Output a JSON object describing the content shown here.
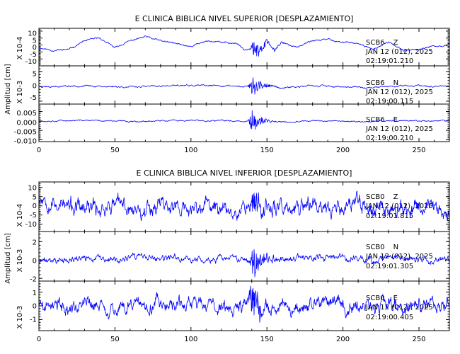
{
  "colors": {
    "trace": "#0000ff",
    "axes": "#000000",
    "background": "#ffffff"
  },
  "chart_data": [
    {
      "type": "line",
      "title": "E CLINICA BIBLICA NIVEL SUPERIOR [DESPLAZAMIENTO]",
      "ylabel": "Amplitud [cm]",
      "xlim": [
        0,
        270
      ],
      "xticks": [
        "0",
        "50",
        "100",
        "150",
        "200",
        "250"
      ],
      "grid": false,
      "panels": [
        {
          "station": "SCB6",
          "component": "Z",
          "date": "JAN 12 (012), 2025",
          "time": "02:19:01.210",
          "scale_label": "X 10-4",
          "ylim": [
            -15,
            12
          ],
          "yticks": [
            "10",
            "5",
            "0",
            "-5",
            "-10"
          ],
          "yticks_v": [
            10,
            5,
            0,
            -5,
            -10
          ],
          "x": [
            0,
            10,
            20,
            30,
            40,
            50,
            60,
            70,
            80,
            90,
            100,
            110,
            120,
            130,
            135,
            140,
            145,
            150,
            155,
            160,
            170,
            180,
            190,
            200,
            210,
            220,
            230,
            240,
            250,
            260,
            270
          ],
          "y": [
            -2,
            -4,
            -3,
            3,
            5,
            -2,
            3,
            6,
            3,
            1,
            -1,
            3,
            2,
            1,
            -3,
            -2,
            -5,
            3,
            -4,
            2,
            -2,
            3,
            4,
            2,
            1,
            -3,
            2,
            -4,
            -3,
            -1,
            0
          ],
          "noise": 0.35,
          "burst_amp": 5.6,
          "burst_peak": 141,
          "burst_decay": 7,
          "seed": 11
        },
        {
          "station": "SCB6",
          "component": "N",
          "date": "JAN 12 (012), 2025",
          "time": "02:19:00.115",
          "scale_label": "X 10-3",
          "ylim": [
            -6,
            7
          ],
          "yticks": [
            "5",
            "0",
            "-5"
          ],
          "yticks_v": [
            5,
            0,
            -5
          ],
          "x": [
            0,
            30,
            60,
            90,
            120,
            135,
            140,
            150,
            160,
            180,
            210,
            240,
            270
          ],
          "y": [
            0,
            0.2,
            -0.2,
            0.3,
            0.2,
            0,
            0,
            0.3,
            -0.4,
            0.2,
            -0.3,
            0.2,
            0
          ],
          "noise": 0.16,
          "burst_amp": 3.6,
          "burst_peak": 140,
          "burst_decay": 5,
          "seed": 23
        },
        {
          "station": "SCB6",
          "component": "E",
          "date": "JAN 12 (012), 2025",
          "time": "02:19:00.210",
          "scale_label": "",
          "ylim": [
            -0.011,
            0.009
          ],
          "yticks": [
            "0.005",
            "0.000",
            "-0.005",
            "-0.010"
          ],
          "yticks_v": [
            0.005,
            0.0,
            -0.005,
            -0.01
          ],
          "x": [
            0,
            30,
            60,
            90,
            120,
            135,
            140,
            150,
            160,
            180,
            210,
            240,
            270
          ],
          "y": [
            0,
            0.0003,
            -0.0002,
            0.0002,
            0.0001,
            0,
            0,
            0.0003,
            -0.0004,
            0.0002,
            -0.0002,
            0.0002,
            0
          ],
          "noise": 0.00022,
          "burst_amp": 0.0062,
          "burst_peak": 140,
          "burst_decay": 5,
          "seed": 37
        }
      ]
    },
    {
      "type": "line",
      "title": "E CLINICA BIBLICA NIVEL INFERIOR [DESPLAZAMIENTO]",
      "ylabel": "Amplitud [cm]",
      "xlim": [
        0,
        270
      ],
      "xticks": [
        "0",
        "50",
        "100",
        "150",
        "200",
        "250"
      ],
      "grid": false,
      "panels": [
        {
          "station": "SCB0",
          "component": "Z",
          "date": "JAN 12 (012), 2025",
          "time": "02:19:01.815",
          "scale_label": "X 10-4",
          "ylim": [
            -14,
            13
          ],
          "yticks": [
            "10",
            "5",
            "0",
            "-5",
            "-10"
          ],
          "yticks_v": [
            10,
            5,
            0,
            -5,
            -10
          ],
          "x": [
            0,
            5,
            10,
            20,
            30,
            40,
            50,
            60,
            70,
            80,
            90,
            100,
            110,
            120,
            130,
            140,
            150,
            160,
            170,
            180,
            190,
            200,
            210,
            220,
            230,
            240,
            250,
            260,
            270
          ],
          "y": [
            5,
            5,
            2,
            -1,
            -3,
            -1,
            1,
            -2,
            -1,
            2,
            -1,
            -3,
            0,
            -1,
            -1,
            1,
            -2,
            0,
            -1,
            1,
            -2,
            0,
            1,
            -2,
            -1,
            0,
            1,
            -2,
            -4
          ],
          "noise": 2.8,
          "burst_amp": 7.5,
          "burst_peak": 141,
          "burst_decay": 6,
          "seed": 53
        },
        {
          "station": "SCB0",
          "component": "N",
          "date": "JAN 12 (012), 2025",
          "time": "02:19:01.305",
          "scale_label": "X 10-3",
          "ylim": [
            -2.3,
            3.1
          ],
          "yticks": [
            "2",
            "0",
            "-2"
          ],
          "yticks_v": [
            2,
            0,
            -2
          ],
          "x": [
            0,
            10,
            20,
            30,
            40,
            50,
            60,
            70,
            80,
            90,
            100,
            110,
            120,
            130,
            140,
            150,
            160,
            170,
            180,
            190,
            200,
            210,
            220,
            230,
            240,
            250,
            260,
            270
          ],
          "y": [
            -0.2,
            0,
            -0.1,
            0.2,
            0.1,
            -0.1,
            0.2,
            0.3,
            0,
            0.2,
            0.1,
            -0.1,
            0.1,
            0,
            -0.2,
            0.3,
            0.2,
            0.4,
            0,
            0.3,
            0.2,
            0.1,
            -0.1,
            0.2,
            0.3,
            0.1,
            -0.2,
            0.2
          ],
          "noise": 0.22,
          "burst_amp": 1.5,
          "burst_peak": 141,
          "burst_decay": 6,
          "seed": 71
        },
        {
          "station": "SCB0",
          "component": "E",
          "date": "JAN 12 (012), 2025",
          "time": "02:19:00.405",
          "scale_label": "X 10-3",
          "ylim": [
            -1.8,
            1.8
          ],
          "yticks": [
            "1",
            "0",
            "-1"
          ],
          "yticks_v": [
            1,
            0,
            -1
          ],
          "x": [
            0,
            10,
            20,
            30,
            40,
            50,
            60,
            70,
            80,
            90,
            100,
            110,
            120,
            130,
            140,
            150,
            160,
            170,
            180,
            190,
            200,
            210,
            220,
            230,
            240,
            250,
            260,
            270
          ],
          "y": [
            0,
            0.1,
            -0.1,
            0.2,
            0,
            -0.4,
            0.1,
            0,
            0.2,
            -0.1,
            0.2,
            0,
            0.1,
            -0.1,
            0.3,
            0,
            0.2,
            -0.1,
            0.1,
            0.2,
            -0.1,
            0.1,
            0,
            0.2,
            -0.2,
            0.1,
            -0.1,
            0
          ],
          "noise": 0.32,
          "burst_amp": 1.3,
          "burst_peak": 140,
          "burst_decay": 6,
          "seed": 89
        }
      ]
    }
  ]
}
